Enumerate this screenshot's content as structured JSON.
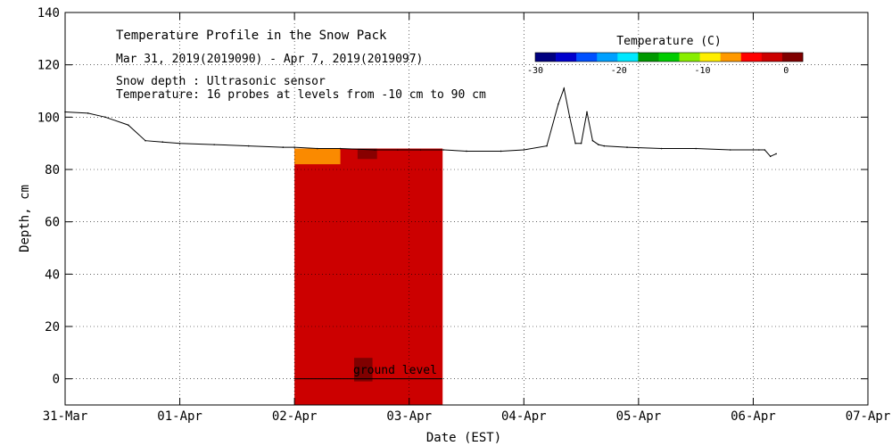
{
  "chart_data": {
    "type": "heatmap",
    "title": "Temperature Profile in the Snow Pack",
    "subtitle": "Mar 31, 2019(2019090) - Apr  7, 2019(2019097)",
    "notes": [
      "Snow depth : Ultrasonic sensor",
      "Temperature: 16 probes at levels from -10 cm to 90 cm"
    ],
    "xlabel": "Date (EST)",
    "ylabel": "Depth, cm",
    "x_ticks": [
      "31-Mar",
      "01-Apr",
      "02-Apr",
      "03-Apr",
      "04-Apr",
      "05-Apr",
      "06-Apr",
      "07-Apr"
    ],
    "xlim_days": [
      0,
      7
    ],
    "ylim": [
      -10,
      140
    ],
    "y_ticks": [
      0,
      20,
      40,
      60,
      80,
      100,
      120,
      140
    ],
    "grid": true,
    "annotation": "ground level",
    "ground_level_cm": 0,
    "colorbar": {
      "label": "Temperature (C)",
      "range": [
        -30,
        2
      ],
      "tick_values": [
        -30,
        -20,
        -10,
        0
      ],
      "tick_labels": [
        "-30",
        "-20",
        "-10",
        "0"
      ],
      "colors": [
        "#000080",
        "#0000cd",
        "#0050ff",
        "#00a0ff",
        "#00e8ff",
        "#009900",
        "#00cc00",
        "#88ee00",
        "#ffee00",
        "#ff9900",
        "#ff0000",
        "#cc0000",
        "#800000"
      ]
    },
    "temperature_field": {
      "start": "02-Apr 00:00",
      "end": "03-Apr 07:00",
      "bulk_value_c": 0,
      "near_surface_value_c": -6,
      "top_cm": 88
    },
    "series": [
      {
        "name": "Snow depth",
        "x_days": [
          0.0,
          0.2,
          0.35,
          0.55,
          0.7,
          0.85,
          1.0,
          1.3,
          1.6,
          1.9,
          2.0,
          2.2,
          2.4,
          2.7,
          2.9,
          3.1,
          3.3,
          3.5,
          3.8,
          4.0,
          4.2,
          4.3,
          4.35,
          4.4,
          4.45,
          4.5,
          4.55,
          4.6,
          4.65,
          4.7,
          4.9,
          5.2,
          5.5,
          5.8,
          6.0,
          6.05,
          6.1,
          6.15,
          6.2
        ],
        "values": [
          102,
          101.5,
          100,
          97,
          91,
          90.5,
          90,
          89.5,
          89,
          88.5,
          88.5,
          88,
          88,
          87.5,
          87.5,
          87.5,
          87.5,
          87,
          87,
          87.5,
          89,
          105,
          111,
          100,
          90,
          90,
          102,
          91,
          89.5,
          89,
          88.5,
          88,
          88,
          87.5,
          87.5,
          87.5,
          87.5,
          85,
          86
        ]
      }
    ]
  }
}
